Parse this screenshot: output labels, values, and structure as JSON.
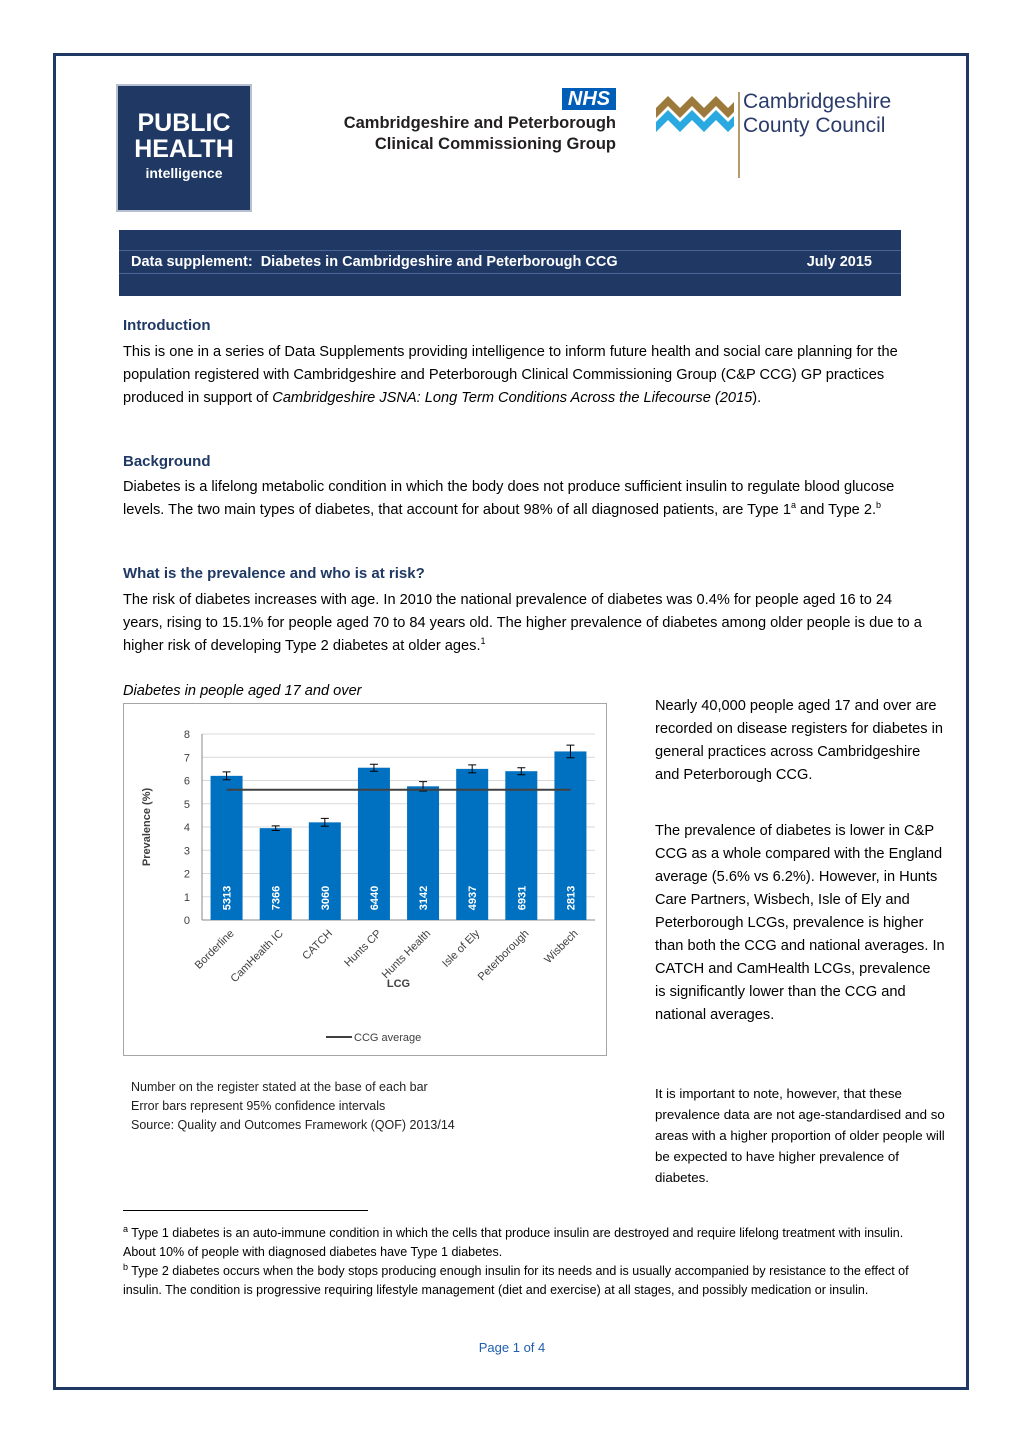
{
  "logos": {
    "public_health": [
      "PUBLIC",
      "HEALTH",
      "intelligence"
    ],
    "nhs": "NHS",
    "ccg": [
      "Cambridgeshire and Peterborough",
      "Clinical Commissioning Group"
    ],
    "council": [
      "Cambridgeshire",
      "County Council"
    ]
  },
  "banner": {
    "title": "Data supplement:  Diabetes in Cambridgeshire and Peterborough CCG",
    "date": "July 2015"
  },
  "sections": [
    {
      "heading": "Introduction",
      "paragraph": [
        {
          "text": "This is one in a series of Data Supplements providing intelligence to inform future health and social care planning for the population registered with Cambridgeshire and Peterborough Clinical Commissioning Group (C&P CCG) GP practices produced in support of "
        },
        {
          "text": "Cambridgeshire JSNA: Long Term Conditions Across the Lifecourse (2015",
          "style": "italic"
        },
        {
          "text": ")."
        }
      ]
    },
    {
      "heading": "Background",
      "paragraph": [
        {
          "text": "Diabetes is a lifelong metabolic condition in which the body does not produce sufficient insulin to regulate blood glucose levels. The two main types of diabetes, that account for about 98% of all diagnosed patients, are Type 1"
        },
        {
          "text": "a",
          "style": "sup"
        },
        {
          "text": " and Type 2."
        },
        {
          "text": "b",
          "style": "sup"
        }
      ]
    },
    {
      "heading": "What is the prevalence and who is at risk?",
      "paragraph": [
        {
          "text": "The risk of diabetes increases with age. In 2010 the national prevalence of diabetes was 0.4% for people aged 16 to 24 years, rising to 15.1% for people aged 70 to 84 years old. The higher prevalence of diabetes among older people is due to a higher risk of developing Type 2 diabetes at older ages."
        },
        {
          "text": "1",
          "style": "sup"
        }
      ]
    }
  ],
  "chart_data": {
    "type": "bar",
    "title": "Diabetes in people aged 17 and over",
    "ylabel": "Prevalence (%)",
    "xlabel": "LCG",
    "categories": [
      "Borderline",
      "CamHealth IC",
      "CATCH",
      "Hunts CP",
      "Hunts Health",
      "Isle of Ely",
      "Peterborough",
      "Wisbech"
    ],
    "values": [
      6.2,
      3.95,
      4.2,
      6.55,
      5.75,
      6.5,
      6.4,
      7.25
    ],
    "errors": [
      0.17,
      0.1,
      0.17,
      0.15,
      0.2,
      0.17,
      0.15,
      0.27
    ],
    "color": "#0070c0",
    "register_counts": [
      5313,
      7366,
      3060,
      6440,
      3142,
      4937,
      6931,
      2813
    ],
    "reference_line": {
      "name": "CCG average",
      "value": 5.6,
      "color": "#404040"
    },
    "ylim": [
      0,
      8
    ],
    "yticks": [
      0,
      1,
      2,
      3,
      4,
      5,
      6,
      7,
      8
    ],
    "grid": true
  },
  "chart_notes": [
    "Number on the register stated at the base of each bar",
    "Error bars represent 95% confidence intervals",
    "Source: Quality and Outcomes Framework (QOF) 2013/14"
  ],
  "side_text": [
    "Nearly 40,000 people aged 17 and over are recorded on disease registers for diabetes in general practices across Cambridgeshire and Peterborough CCG.",
    "The prevalence of diabetes is lower in C&P CCG as a whole compared with the England average (5.6% vs 6.2%).  However, in Hunts Care Partners, Wisbech, Isle of Ely and Peterborough LCGs, prevalence is higher than both the CCG and national averages.  In CATCH and CamHealth LCGs, prevalence is significantly lower than the CCG and national averages."
  ],
  "side_note": "It is important to note, however, that these prevalence data are not age-standardised and so areas with a higher proportion of older people will be expected to have higher prevalence of diabetes.",
  "footnotes": [
    [
      {
        "text": "a",
        "style": "sup"
      },
      {
        "text": " Type 1 diabetes is an auto-immune condition in which the cells that produce insulin are destroyed and require lifelong treatment with insulin. About 10% of people with diagnosed diabetes have Type 1 diabetes."
      }
    ],
    [
      {
        "text": "b",
        "style": "sup"
      },
      {
        "text": " Type 2 diabetes occurs when the body stops producing enough insulin for its needs and is usually accompanied by resistance to the effect of insulin. The condition is progressive requiring lifestyle management (diet and exercise) at all stages, and possibly medication or insulin."
      }
    ]
  ],
  "page_number": "Page 1 of 4"
}
